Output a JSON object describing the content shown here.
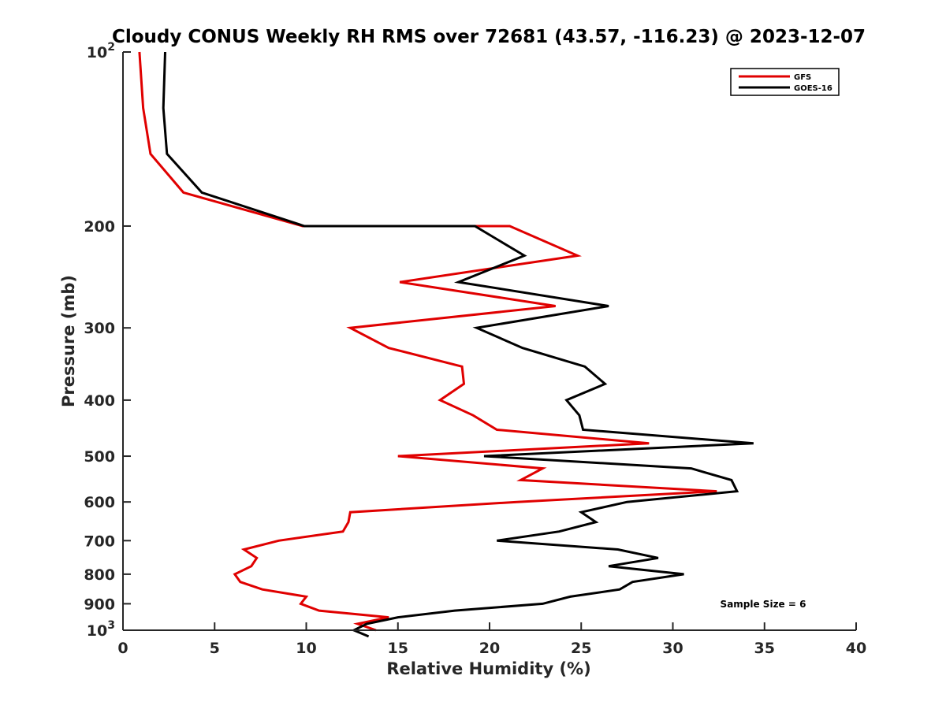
{
  "chart_data": {
    "type": "line",
    "title": "Cloudy CONUS Weekly RH RMS over 72681 (43.57, -116.23) @ 2023-12-07",
    "xlabel": "Relative Humidity (%)",
    "ylabel": "Pressure (mb)",
    "xlim": [
      0,
      40
    ],
    "ylim": [
      100,
      1000
    ],
    "y_scale": "log",
    "y_reversed": true,
    "grid": false,
    "legend_position": "top-right",
    "x_ticks": [
      "0",
      "5",
      "10",
      "15",
      "20",
      "25",
      "30",
      "35",
      "40"
    ],
    "y_ticks": [
      {
        "value": 100,
        "base": "10",
        "exp": "2"
      },
      {
        "value": 200,
        "label": "200"
      },
      {
        "value": 300,
        "label": "300"
      },
      {
        "value": 400,
        "label": "400"
      },
      {
        "value": 500,
        "label": "500"
      },
      {
        "value": 600,
        "label": "600"
      },
      {
        "value": 700,
        "label": "700"
      },
      {
        "value": 800,
        "label": "800"
      },
      {
        "value": 900,
        "label": "900"
      },
      {
        "value": 1000,
        "base": "10",
        "exp": "3"
      }
    ],
    "annotation": "Sample Size = 6",
    "series": [
      {
        "name": "GFS",
        "color": "#e00000",
        "points": [
          [
            0.9,
            100
          ],
          [
            1.1,
            125
          ],
          [
            1.5,
            150
          ],
          [
            3.3,
            175
          ],
          [
            9.8,
            200
          ],
          [
            21.1,
            200
          ],
          [
            24.8,
            225
          ],
          [
            15.1,
            250
          ],
          [
            23.6,
            275
          ],
          [
            12.4,
            300
          ],
          [
            14.5,
            325
          ],
          [
            18.5,
            350
          ],
          [
            18.6,
            375
          ],
          [
            17.3,
            400
          ],
          [
            19.1,
            425
          ],
          [
            20.4,
            450
          ],
          [
            28.7,
            475
          ],
          [
            15.0,
            500
          ],
          [
            22.9,
            525
          ],
          [
            21.7,
            550
          ],
          [
            32.4,
            575
          ],
          [
            21.5,
            600
          ],
          [
            12.4,
            625
          ],
          [
            12.3,
            650
          ],
          [
            12.0,
            675
          ],
          [
            8.5,
            700
          ],
          [
            6.6,
            725
          ],
          [
            7.3,
            750
          ],
          [
            7.0,
            775
          ],
          [
            6.1,
            800
          ],
          [
            6.4,
            825
          ],
          [
            7.6,
            850
          ],
          [
            10.0,
            875
          ],
          [
            9.7,
            900
          ],
          [
            10.7,
            925
          ],
          [
            14.5,
            950
          ],
          [
            12.8,
            975
          ],
          [
            13.8,
            1000
          ]
        ]
      },
      {
        "name": "GOES-16",
        "color": "#000000",
        "points": [
          [
            2.3,
            100
          ],
          [
            2.2,
            125
          ],
          [
            2.4,
            150
          ],
          [
            4.3,
            175
          ],
          [
            9.9,
            200
          ],
          [
            19.2,
            200
          ],
          [
            21.9,
            225
          ],
          [
            18.3,
            250
          ],
          [
            26.5,
            275
          ],
          [
            19.3,
            300
          ],
          [
            21.8,
            325
          ],
          [
            25.2,
            350
          ],
          [
            26.3,
            375
          ],
          [
            24.2,
            400
          ],
          [
            24.9,
            425
          ],
          [
            25.1,
            450
          ],
          [
            34.4,
            475
          ],
          [
            19.7,
            500
          ],
          [
            31.0,
            525
          ],
          [
            33.2,
            550
          ],
          [
            33.5,
            575
          ],
          [
            27.5,
            600
          ],
          [
            25.0,
            625
          ],
          [
            25.8,
            650
          ],
          [
            23.8,
            675
          ],
          [
            20.4,
            700
          ],
          [
            27.0,
            725
          ],
          [
            29.2,
            750
          ],
          [
            26.5,
            775
          ],
          [
            30.6,
            800
          ],
          [
            27.8,
            825
          ],
          [
            27.1,
            850
          ],
          [
            24.4,
            875
          ],
          [
            22.9,
            900
          ],
          [
            18.1,
            925
          ],
          [
            15.0,
            950
          ],
          [
            13.3,
            975
          ],
          [
            12.6,
            1000
          ],
          [
            13.4,
            1025
          ]
        ]
      }
    ]
  }
}
